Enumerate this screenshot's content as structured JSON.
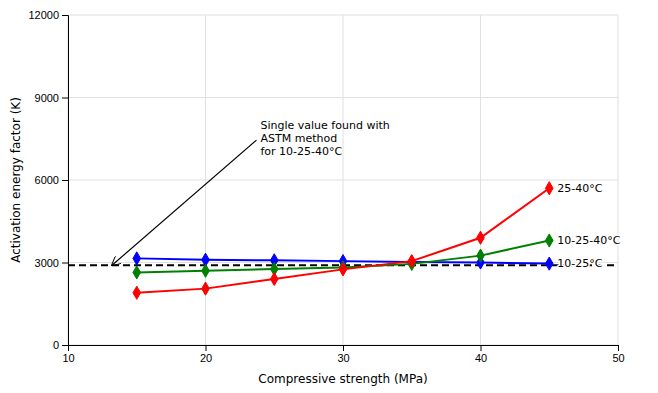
{
  "chart_data": {
    "type": "line",
    "x_label": "Compressive strength (MPa)",
    "y_label": "Activation energy factor (K)",
    "x": [
      15,
      20,
      25,
      30,
      35,
      40,
      45
    ],
    "series": [
      {
        "name": "10-25°C",
        "color": "#0000FF",
        "marker": "diamond",
        "values": [
          3150,
          3100,
          3080,
          3050,
          3020,
          3000,
          2960
        ]
      },
      {
        "name": "10-25-40°C",
        "color": "#008000",
        "marker": "diamond",
        "values": [
          2640,
          2700,
          2760,
          2820,
          2950,
          3250,
          3800
        ]
      },
      {
        "name": "25-40°C",
        "color": "#FF0000",
        "marker": "diamond",
        "values": [
          1900,
          2050,
          2400,
          2750,
          3050,
          3900,
          5700
        ]
      }
    ],
    "reference_lines": [
      {
        "y": 2900,
        "color": "#000000",
        "line_style": "dashed"
      }
    ],
    "annotations": [
      {
        "text": "Single value found with\nASTM method\nfor 10-25-40°C",
        "x": 13.2,
        "y": 2900
      }
    ],
    "xlim": [
      10,
      50
    ],
    "ylim": [
      0,
      12000
    ],
    "xticks": [
      10,
      20,
      30,
      40,
      50
    ],
    "yticks": [
      0,
      3000,
      6000,
      9000,
      12000
    ],
    "grid": true
  }
}
